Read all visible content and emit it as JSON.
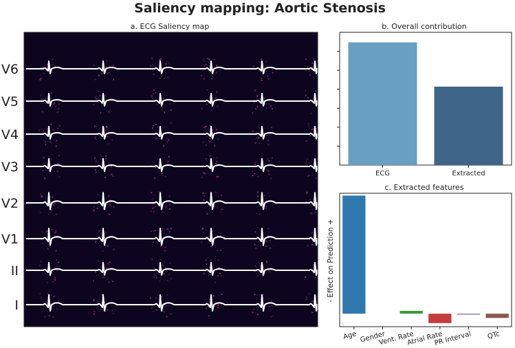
{
  "figure": {
    "title": "Saliency mapping: Aortic Stenosis"
  },
  "chart_data": [
    {
      "type": "heatmap",
      "title": "a. ECG Saliency map",
      "leads": [
        "V6",
        "V5",
        "V4",
        "V3",
        "V2",
        "V1",
        "II",
        "I"
      ],
      "colors": {
        "background": "#0d0520",
        "trace": "#ffffff",
        "saliency_hot": "#b5367a"
      }
    },
    {
      "type": "bar",
      "title": "b. Overall contribution",
      "categories": [
        "ECG",
        "Extracted"
      ],
      "values": [
        0.61,
        0.39
      ],
      "ylim": [
        0,
        0.66
      ],
      "colors": [
        "#6a9fc4",
        "#3e6587"
      ],
      "grid": false
    },
    {
      "type": "bar",
      "title": "c. Extracted features",
      "ylabel": "- Effect on Prediction +",
      "categories": [
        "Age",
        "Gender",
        "Vent. Rate",
        "Atrial Rate",
        "PR Interval",
        "QTc"
      ],
      "values": [
        0.5,
        0.0,
        0.012,
        -0.04,
        -0.004,
        -0.018
      ],
      "ylim": [
        -0.055,
        0.51
      ],
      "colors": [
        "#2f78ad",
        "#e07d2e",
        "#3a9a3a",
        "#c43d3d",
        "#8c72b8",
        "#8a574d"
      ],
      "grid": false
    }
  ]
}
